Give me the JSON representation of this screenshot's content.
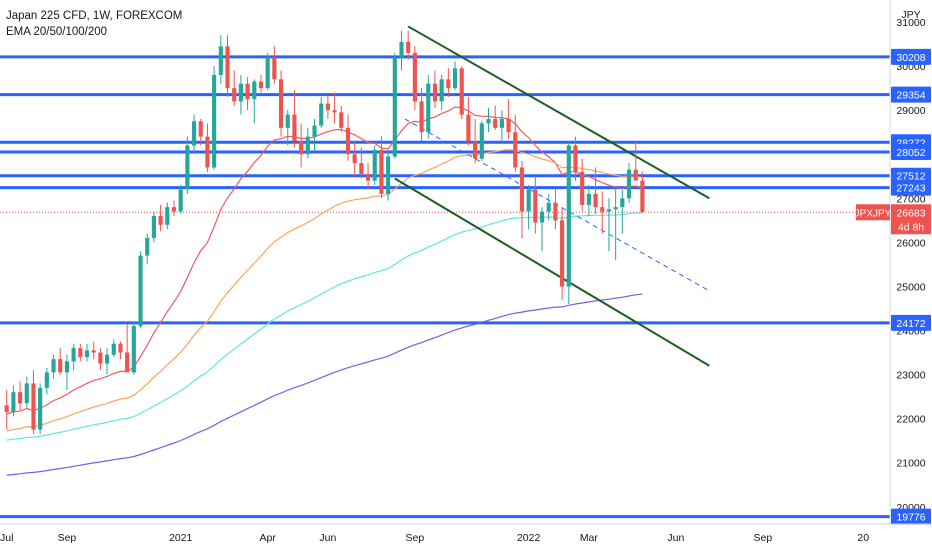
{
  "chart_data": {
    "type": "candlestick",
    "title": "Japan 225 CFD, 1W, FOREXCOM",
    "indicator_label": "EMA 20/50/100/200",
    "currency": "JPY",
    "symbol_badge": "JPXJPY",
    "price_badge": "26683",
    "countdown_badge": "4d 8h",
    "ylim": [
      19700,
      31500
    ],
    "y_ticks": [
      20000,
      21000,
      22000,
      23000,
      24000,
      25000,
      26000,
      27000,
      28000,
      29000,
      30000,
      31000
    ],
    "x_ticks": [
      {
        "label": "Jul",
        "t": 0
      },
      {
        "label": "Sep",
        "t": 9
      },
      {
        "label": "2021",
        "t": 26
      },
      {
        "label": "Apr",
        "t": 39
      },
      {
        "label": "Jun",
        "t": 48
      },
      {
        "label": "Sep",
        "t": 61
      },
      {
        "label": "2022",
        "t": 78
      },
      {
        "label": "Mar",
        "t": 87
      },
      {
        "label": "Jun",
        "t": 100
      },
      {
        "label": "Sep",
        "t": 113
      },
      {
        "label": "20",
        "t": 128
      }
    ],
    "xlim": [
      -1,
      132
    ],
    "horizontal_levels": [
      {
        "value": 30208,
        "label": "30208"
      },
      {
        "value": 29354,
        "label": "29354"
      },
      {
        "value": 28272,
        "label": "28272"
      },
      {
        "value": 28052,
        "label": "28052"
      },
      {
        "value": 27512,
        "label": "27512"
      },
      {
        "value": 27243,
        "label": "27243"
      },
      {
        "value": 24172,
        "label": "24172"
      },
      {
        "value": 19776,
        "label": "19776"
      }
    ],
    "current_price": 26683,
    "colors": {
      "up": "#26a69a",
      "down": "#ef5350",
      "level_line": "#2962ff",
      "channel": "#1b5e20",
      "ema20": "#f05a5a",
      "ema50": "#ffa15c",
      "ema100": "#5ee6e6",
      "ema200": "#7b5cf0",
      "midline": "#2962ff"
    },
    "candles_ohlc": [
      [
        22300,
        22650,
        21750,
        22150
      ],
      [
        22150,
        22750,
        22050,
        22600
      ],
      [
        22600,
        22850,
        22200,
        22350
      ],
      [
        22350,
        22950,
        22250,
        22800
      ],
      [
        22800,
        23100,
        21650,
        21750
      ],
      [
        21750,
        22800,
        21650,
        22700
      ],
      [
        22700,
        23150,
        22550,
        23050
      ],
      [
        23050,
        23450,
        22900,
        23350
      ],
      [
        23350,
        23600,
        23000,
        23050
      ],
      [
        23050,
        23450,
        22650,
        23300
      ],
      [
        23300,
        23700,
        23100,
        23600
      ],
      [
        23600,
        23700,
        23300,
        23400
      ],
      [
        23400,
        23700,
        23300,
        23550
      ],
      [
        23550,
        23750,
        23350,
        23500
      ],
      [
        23500,
        23600,
        23100,
        23250
      ],
      [
        23250,
        23600,
        23000,
        23450
      ],
      [
        23450,
        23800,
        23400,
        23700
      ],
      [
        23700,
        23750,
        23350,
        23500
      ],
      [
        23500,
        24150,
        23300,
        23050
      ],
      [
        23050,
        24200,
        23000,
        24100
      ],
      [
        24100,
        25800,
        24050,
        25700
      ],
      [
        25700,
        26200,
        25500,
        26100
      ],
      [
        26100,
        26700,
        26000,
        26600
      ],
      [
        26600,
        26850,
        26250,
        26400
      ],
      [
        26400,
        26900,
        26300,
        26800
      ],
      [
        26800,
        26950,
        26600,
        26700
      ],
      [
        26700,
        27300,
        26650,
        27200
      ],
      [
        27200,
        28400,
        27100,
        28200
      ],
      [
        28200,
        28900,
        28050,
        28750
      ],
      [
        28750,
        28800,
        28200,
        28400
      ],
      [
        28400,
        28700,
        27600,
        27700
      ],
      [
        27700,
        30000,
        27650,
        29800
      ],
      [
        29800,
        30700,
        29600,
        30450
      ],
      [
        30450,
        30700,
        29300,
        29500
      ],
      [
        29500,
        29900,
        29100,
        29200
      ],
      [
        29200,
        29800,
        28900,
        29600
      ],
      [
        29600,
        29750,
        29000,
        29250
      ],
      [
        29250,
        29700,
        28700,
        29650
      ],
      [
        29650,
        29800,
        29400,
        29500
      ],
      [
        29500,
        30300,
        29450,
        30200
      ],
      [
        30200,
        30450,
        29600,
        29700
      ],
      [
        29700,
        29900,
        28400,
        28600
      ],
      [
        28600,
        29000,
        28200,
        28900
      ],
      [
        28900,
        29450,
        28150,
        28300
      ],
      [
        28300,
        28700,
        27700,
        28000
      ],
      [
        28000,
        28600,
        27900,
        28400
      ],
      [
        28400,
        28800,
        28050,
        28650
      ],
      [
        28650,
        29300,
        28600,
        29150
      ],
      [
        29150,
        29350,
        28800,
        29000
      ],
      [
        29000,
        29400,
        28700,
        28950
      ],
      [
        28950,
        29100,
        28500,
        28600
      ],
      [
        28600,
        28900,
        27850,
        28000
      ],
      [
        28000,
        28300,
        27500,
        27800
      ],
      [
        27800,
        28150,
        27450,
        27550
      ],
      [
        27550,
        27800,
        27200,
        27400
      ],
      [
        27400,
        28200,
        27300,
        28100
      ],
      [
        28100,
        28400,
        27000,
        27100
      ],
      [
        27100,
        28100,
        26950,
        27950
      ],
      [
        27950,
        30300,
        27900,
        30200
      ],
      [
        30200,
        30800,
        29900,
        30550
      ],
      [
        30550,
        30800,
        30150,
        30300
      ],
      [
        30300,
        30450,
        29000,
        29200
      ],
      [
        29200,
        29500,
        28300,
        28500
      ],
      [
        28500,
        29800,
        28350,
        29600
      ],
      [
        29600,
        29900,
        29050,
        29200
      ],
      [
        29200,
        29800,
        29000,
        29700
      ],
      [
        29700,
        29950,
        29300,
        29500
      ],
      [
        29500,
        30100,
        29450,
        29950
      ],
      [
        29950,
        30000,
        28800,
        28900
      ],
      [
        28900,
        29300,
        28200,
        28300
      ],
      [
        28300,
        28800,
        27800,
        27900
      ],
      [
        27900,
        28750,
        27850,
        28700
      ],
      [
        28700,
        29050,
        28500,
        28800
      ],
      [
        28800,
        29100,
        28550,
        28600
      ],
      [
        28600,
        29000,
        28250,
        28800
      ],
      [
        28800,
        29250,
        28350,
        28500
      ],
      [
        28500,
        28900,
        27600,
        27700
      ],
      [
        27700,
        27850,
        26100,
        26700
      ],
      [
        26700,
        27300,
        26300,
        27200
      ],
      [
        27200,
        27500,
        26200,
        26450
      ],
      [
        26450,
        26800,
        25800,
        26700
      ],
      [
        26700,
        27100,
        26500,
        26900
      ],
      [
        26900,
        27200,
        26300,
        26500
      ],
      [
        26500,
        26800,
        24700,
        25000
      ],
      [
        25000,
        28300,
        24600,
        28200
      ],
      [
        28200,
        28400,
        27400,
        27600
      ],
      [
        27600,
        27900,
        26700,
        26850
      ],
      [
        26850,
        27300,
        26600,
        27100
      ],
      [
        27100,
        27700,
        26650,
        26800
      ],
      [
        26800,
        27150,
        26200,
        26700
      ],
      [
        26700,
        27000,
        25800,
        26750
      ],
      [
        26750,
        27200,
        25600,
        26800
      ],
      [
        26800,
        27200,
        26200,
        27000
      ],
      [
        27000,
        27800,
        26900,
        27650
      ],
      [
        27650,
        28300,
        27600,
        27400
      ],
      [
        27400,
        27600,
        26683,
        26683
      ]
    ]
  }
}
